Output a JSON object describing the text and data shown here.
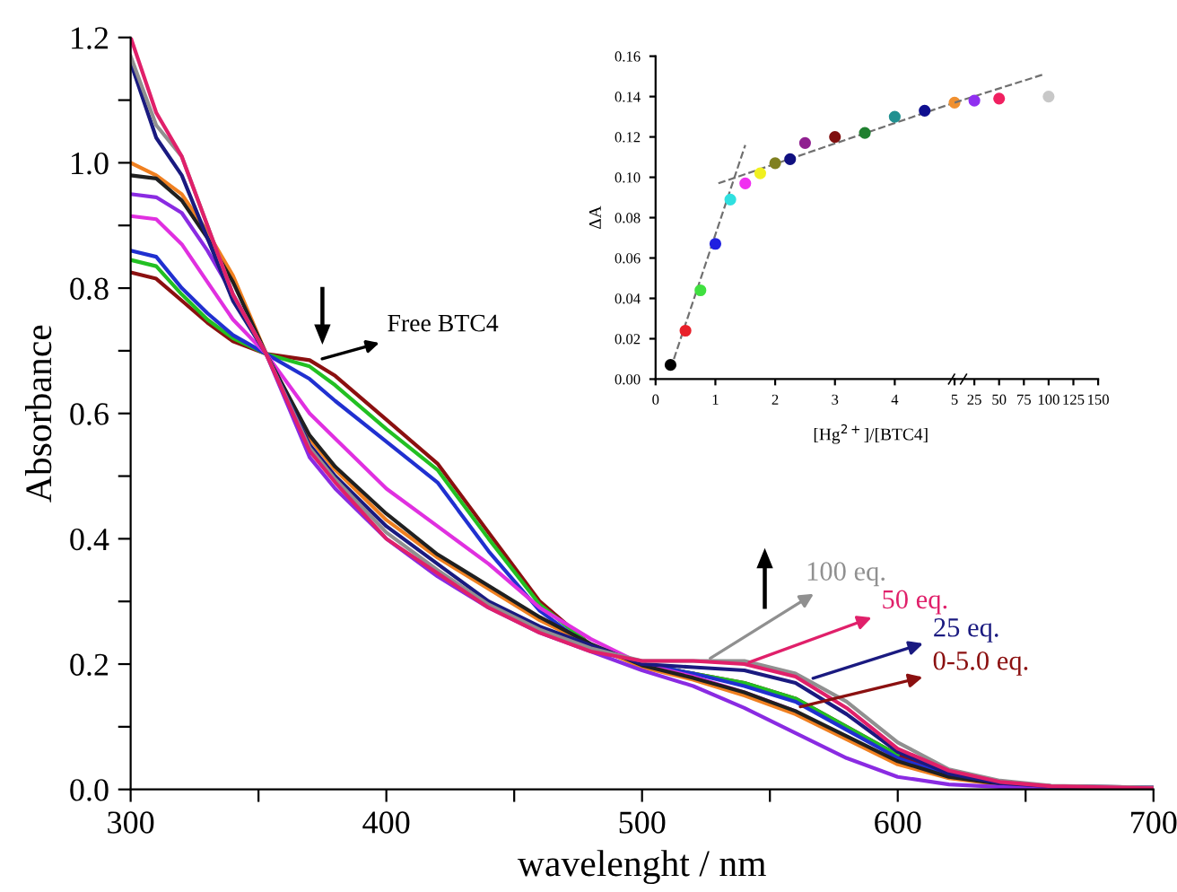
{
  "chart_data": [
    {
      "type": "line",
      "xlabel": "wavelenght / nm",
      "ylabel": "Absorbance",
      "xlim": [
        300,
        700
      ],
      "ylim": [
        0,
        1.2
      ],
      "xticks": [
        300,
        {
          "value": 350,
          "label": null
        },
        400,
        {
          "value": 450,
          "label": null
        },
        500,
        {
          "value": 550,
          "label": null
        },
        600,
        {
          "value": 650,
          "label": null
        },
        700
      ],
      "yticks": [
        {
          "value": 0,
          "label": "0.0"
        },
        {
          "value": 0.1,
          "label": null
        },
        0.2,
        {
          "value": 0.3,
          "label": null
        },
        0.4,
        {
          "value": 0.5,
          "label": null
        },
        0.6,
        {
          "value": 0.7,
          "label": null
        },
        0.8,
        {
          "value": 0.9,
          "label": null
        },
        {
          "value": 1,
          "label": "1.0"
        },
        {
          "value": 1.1,
          "label": null
        },
        1.2
      ],
      "grid": false,
      "line_style": "solid",
      "x": [
        300,
        310,
        320,
        330,
        340,
        353,
        370,
        380,
        400,
        420,
        440,
        460,
        480,
        500,
        520,
        540,
        560,
        580,
        600,
        620,
        640,
        660,
        700
      ],
      "series": [
        {
          "color": "#8b1010",
          "values": [
            0.825,
            0.815,
            0.78,
            0.745,
            0.715,
            0.695,
            0.685,
            0.66,
            0.59,
            0.52,
            0.41,
            0.3,
            0.23,
            0.2,
            0.185,
            0.17,
            0.145,
            0.1,
            0.055,
            0.025,
            0.01,
            0.005,
            0.003
          ]
        },
        {
          "color": "#22c022",
          "values": [
            0.845,
            0.835,
            0.79,
            0.75,
            0.72,
            0.695,
            0.675,
            0.645,
            0.575,
            0.51,
            0.4,
            0.295,
            0.23,
            0.2,
            0.185,
            0.17,
            0.145,
            0.1,
            0.055,
            null,
            null,
            null,
            null
          ]
        },
        {
          "color": "#2030d0",
          "values": [
            0.86,
            0.85,
            0.8,
            0.76,
            0.725,
            0.695,
            0.655,
            0.62,
            0.555,
            0.49,
            0.38,
            0.285,
            0.225,
            0.2,
            0.185,
            0.165,
            0.14,
            0.095,
            0.05,
            0.022,
            0.01,
            0.005,
            0.003
          ]
        },
        {
          "color": "#e030e0",
          "values": [
            0.915,
            0.91,
            0.87,
            0.81,
            0.75,
            0.695,
            0.6,
            0.56,
            0.48,
            0.42,
            0.36,
            0.29,
            0.24,
            0.2,
            0.18,
            0.155,
            0.125,
            null,
            null,
            null,
            null,
            null,
            null
          ]
        },
        {
          "color": "#f08020",
          "values": [
            1.0,
            0.98,
            0.95,
            0.89,
            0.82,
            0.695,
            0.56,
            0.51,
            0.43,
            0.37,
            0.32,
            0.27,
            0.23,
            0.195,
            0.175,
            0.15,
            0.12,
            0.08,
            0.04,
            0.018,
            0.008,
            0.004,
            0.002
          ]
        },
        {
          "color": "#202020",
          "values": [
            0.98,
            0.975,
            0.94,
            0.88,
            0.81,
            0.695,
            0.565,
            0.515,
            0.44,
            0.375,
            0.325,
            0.275,
            0.232,
            0.198,
            0.178,
            0.155,
            0.125,
            0.085,
            0.045,
            0.02,
            0.009,
            0.004,
            0.002
          ]
        },
        {
          "color": "#8a2be2",
          "values": [
            0.95,
            0.945,
            0.92,
            0.86,
            0.79,
            0.695,
            0.53,
            0.48,
            0.4,
            0.34,
            0.29,
            0.25,
            0.22,
            0.19,
            0.165,
            0.13,
            0.09,
            0.05,
            0.02,
            0.008,
            0.004,
            0.002,
            0.001
          ]
        },
        {
          "color": "#1a1a80",
          "values": [
            1.16,
            1.04,
            0.98,
            0.88,
            0.78,
            0.695,
            0.55,
            0.5,
            0.42,
            0.36,
            0.3,
            0.26,
            0.23,
            0.2,
            0.195,
            0.19,
            0.17,
            0.12,
            0.06,
            0.025,
            0.01,
            0.005,
            0.002
          ]
        },
        {
          "color": "#909090",
          "values": [
            1.17,
            1.06,
            1.01,
            0.9,
            0.79,
            0.695,
            0.545,
            0.495,
            0.41,
            0.35,
            0.295,
            0.255,
            0.225,
            0.205,
            0.205,
            0.205,
            0.185,
            0.14,
            0.075,
            0.032,
            0.014,
            0.006,
            0.003
          ]
        },
        {
          "color": "#e0206a",
          "values": [
            1.2,
            1.08,
            1.01,
            0.9,
            0.79,
            0.695,
            0.54,
            0.49,
            0.4,
            0.345,
            0.29,
            0.25,
            0.22,
            0.205,
            0.205,
            0.2,
            0.18,
            0.13,
            0.065,
            0.03,
            0.012,
            0.005,
            0.002
          ]
        }
      ],
      "annotations": [
        {
          "text": "Free BTC4",
          "x": 373,
          "y": 0.685
        },
        {
          "text": "100 eq.",
          "x": 525,
          "y": 0.205
        },
        {
          "text": "50 eq.",
          "x": 540,
          "y": 0.2
        },
        {
          "text": "25 eq.",
          "x": 565,
          "y": 0.175
        },
        {
          "text": "0-5.0 eq.",
          "x": 560,
          "y": 0.13
        }
      ]
    },
    {
      "type": "scatter",
      "ylabel": "ΔA",
      "xlim": [
        0,
        5
      ],
      "ylim": [
        0,
        0.16
      ],
      "xticks": [
        0,
        1,
        2,
        3,
        4,
        5
      ],
      "yticks": [
        {
          "value": 0,
          "label": "0.00"
        },
        0.02,
        0.04,
        0.06,
        0.08,
        {
          "value": 0.1,
          "label": "0.10"
        },
        0.12,
        0.14,
        0.16
      ],
      "grid": false,
      "xlabel": "[Hg$^{2+}$]/[BTC4]",
      "series": [
        {
          "type": "scatter",
          "marker": "circle",
          "x": [
            0.25,
            0.5,
            0.75,
            1.0,
            1.25,
            1.5,
            1.75,
            2.0,
            2.25,
            2.5,
            3.0,
            3.5,
            4.0,
            4.5,
            5.0
          ],
          "values": [
            0.007,
            0.024,
            0.044,
            0.067,
            0.089,
            0.097,
            0.102,
            0.107,
            0.109,
            0.117,
            0.12,
            0.122,
            0.13,
            0.133,
            0.137
          ],
          "colors": [
            "#000000",
            "#e8202a",
            "#40e040",
            "#2020e0",
            "#30e0e0",
            "#f030f0",
            "#f0f020",
            "#808020",
            "#101080",
            "#902090",
            "#801010",
            "#208030",
            "#209090",
            "#101090",
            "#f09030"
          ]
        },
        {
          "type": "line",
          "line_style": "dashed",
          "color": "#707070",
          "x": [
            0.25,
            1.5
          ],
          "values": [
            0.005,
            0.116
          ]
        },
        {
          "type": "line",
          "line_style": "dashed",
          "color": "#707070",
          "x": [
            1.05,
            5.0
          ],
          "values": [
            0.097,
            0.137
          ]
        }
      ]
    },
    {
      "type": "scatter",
      "xlim": [
        5,
        150
      ],
      "ylim": [
        0,
        0.16
      ],
      "xticks": [
        25,
        50,
        75,
        100,
        125,
        150
      ],
      "tick_labels": "x",
      "grid": false,
      "series": [
        {
          "type": "scatter",
          "marker": "circle",
          "x": [
            25,
            50,
            100
          ],
          "values": [
            0.138,
            0.139,
            0.14
          ],
          "colors": [
            "#9030f0",
            "#f02060",
            "#c8c8c8"
          ]
        },
        {
          "type": "line",
          "line_style": "dashed",
          "color": "#707070",
          "x": [
            5,
            95
          ],
          "values": [
            0.137,
            0.151
          ]
        }
      ]
    }
  ]
}
